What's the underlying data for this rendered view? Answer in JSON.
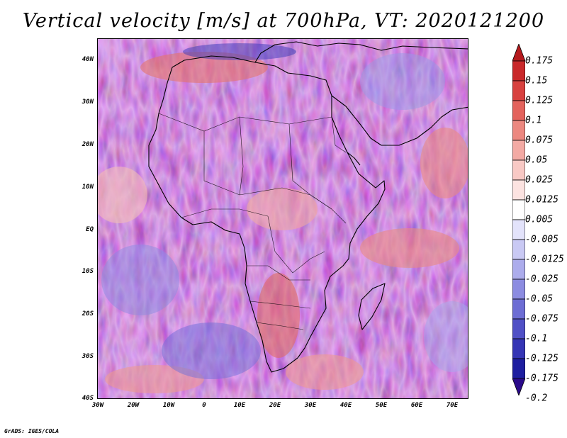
{
  "title": "Vertical velocity [m/s] at 700hPa, VT: 2020121200",
  "footer": "GrADS: IGES/COLA",
  "map": {
    "region": "Africa",
    "variable": "Vertical velocity",
    "units": "m/s",
    "level": "700hPa",
    "valid_time": "2020121200",
    "lon_range": [
      -30,
      75
    ],
    "lat_range": [
      -40,
      45
    ],
    "lat_labels": [
      "40N",
      "30N",
      "20N",
      "10N",
      "EQ",
      "10S",
      "20S",
      "30S",
      "40S"
    ],
    "lon_labels": [
      "30W",
      "20W",
      "10W",
      "0",
      "10E",
      "20E",
      "30E",
      "40E",
      "50E",
      "60E",
      "70E"
    ]
  },
  "colorbar": {
    "labels": [
      "0.175",
      "0.15",
      "0.125",
      "0.1",
      "0.075",
      "0.05",
      "0.025",
      "0.0125",
      "0.005",
      "-0.005",
      "-0.0125",
      "-0.025",
      "-0.05",
      "-0.075",
      "-0.1",
      "-0.125",
      "-0.175",
      "-0.2"
    ],
    "colors": [
      "#b51a1d",
      "#c9282a",
      "#d8413f",
      "#e3635d",
      "#ec8880",
      "#f3aaa4",
      "#f8c9c5",
      "#fce3e1",
      "#ffffff",
      "#e3e3fb",
      "#c9c9f4",
      "#acacec",
      "#8c8ce1",
      "#6d6dd4",
      "#5050c6",
      "#3535b5",
      "#1e1ea0",
      "#2a0a8a"
    ]
  }
}
